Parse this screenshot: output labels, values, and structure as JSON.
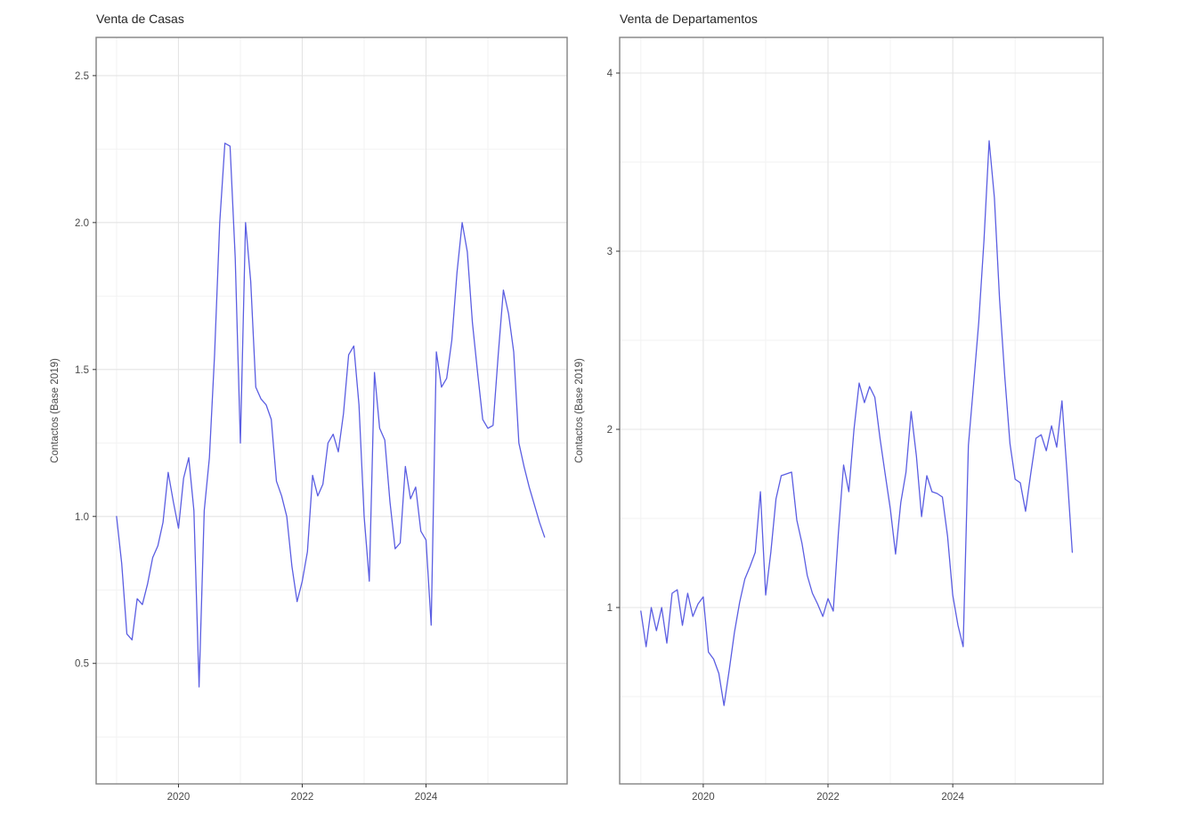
{
  "figure": {
    "background": "#ffffff"
  },
  "chart_data": [
    {
      "type": "line",
      "title": "Venta de Casas",
      "xlabel": "",
      "ylabel": "Contactos (Base 2019)",
      "legend": "none",
      "grid": "on",
      "line_color": "#5b5ee2",
      "x_start_year": 2019,
      "x_step_months": 1,
      "x_ticks": [
        2020,
        2022,
        2024
      ],
      "x_tick_labels": [
        "2020",
        "2022",
        "2024"
      ],
      "x_minor_ticks": [
        2019,
        2021,
        2023,
        2025
      ],
      "y_ticks": [
        0.5,
        1.0,
        1.5,
        2.0,
        2.5
      ],
      "y_tick_labels": [
        "0.5",
        "1.0",
        "1.5",
        "2.0",
        "2.5"
      ],
      "y_minor_ticks": [
        0.25,
        0.75,
        1.25,
        1.75,
        2.25
      ],
      "xlim": [
        2018.67,
        2026.28
      ],
      "ylim": [
        0.09,
        2.63
      ],
      "values": [
        1.0,
        0.84,
        0.6,
        0.58,
        0.72,
        0.7,
        0.77,
        0.86,
        0.9,
        0.98,
        1.15,
        1.05,
        0.96,
        1.13,
        1.2,
        1.02,
        0.42,
        1.02,
        1.2,
        1.55,
        2.0,
        2.27,
        2.26,
        1.88,
        1.25,
        2.0,
        1.8,
        1.44,
        1.4,
        1.38,
        1.33,
        1.12,
        1.07,
        1.0,
        0.83,
        0.71,
        0.78,
        0.88,
        1.14,
        1.07,
        1.11,
        1.25,
        1.28,
        1.22,
        1.35,
        1.55,
        1.58,
        1.38,
        1.0,
        0.78,
        1.49,
        1.3,
        1.26,
        1.05,
        0.89,
        0.91,
        1.17,
        1.06,
        1.1,
        0.95,
        0.92,
        0.63,
        1.56,
        1.44,
        1.47,
        1.6,
        1.83,
        2.0,
        1.9,
        1.66,
        1.49,
        1.33,
        1.3,
        1.31,
        1.55,
        1.77,
        1.69,
        1.56,
        1.25,
        1.17,
        1.1,
        1.04,
        0.98,
        0.93
      ]
    },
    {
      "type": "line",
      "title": "Venta de Departamentos",
      "xlabel": "",
      "ylabel": "Contactos (Base 2019)",
      "legend": "none",
      "grid": "on",
      "line_color": "#5b5ee2",
      "x_start_year": 2019,
      "x_step_months": 1,
      "x_ticks": [
        2020,
        2022,
        2024
      ],
      "x_tick_labels": [
        "2020",
        "2022",
        "2024"
      ],
      "x_minor_ticks": [
        2019,
        2021,
        2023,
        2025
      ],
      "y_ticks": [
        1,
        2,
        3,
        4
      ],
      "y_tick_labels": [
        "1",
        "2",
        "3",
        "4"
      ],
      "y_minor_ticks": [
        0.5,
        1.5,
        2.5,
        3.5
      ],
      "xlim": [
        2018.66,
        2026.41
      ],
      "ylim": [
        0.01,
        4.2
      ],
      "values": [
        0.98,
        0.78,
        1.0,
        0.87,
        1.0,
        0.8,
        1.08,
        1.1,
        0.9,
        1.08,
        0.95,
        1.02,
        1.06,
        0.75,
        0.71,
        0.63,
        0.45,
        0.65,
        0.86,
        1.03,
        1.16,
        1.23,
        1.31,
        1.65,
        1.07,
        1.31,
        1.61,
        1.74,
        1.75,
        1.76,
        1.49,
        1.36,
        1.18,
        1.08,
        1.02,
        0.95,
        1.05,
        0.98,
        1.42,
        1.8,
        1.65,
        2.0,
        2.26,
        2.15,
        2.24,
        2.18,
        1.95,
        1.75,
        1.55,
        1.3,
        1.59,
        1.76,
        2.1,
        1.85,
        1.51,
        1.74,
        1.65,
        1.64,
        1.62,
        1.4,
        1.07,
        0.9,
        0.78,
        1.91,
        2.25,
        2.6,
        3.06,
        3.62,
        3.3,
        2.73,
        2.3,
        1.92,
        1.72,
        1.7,
        1.54,
        1.75,
        1.95,
        1.97,
        1.88,
        2.02,
        1.9,
        2.16,
        1.75,
        1.31
      ]
    }
  ]
}
